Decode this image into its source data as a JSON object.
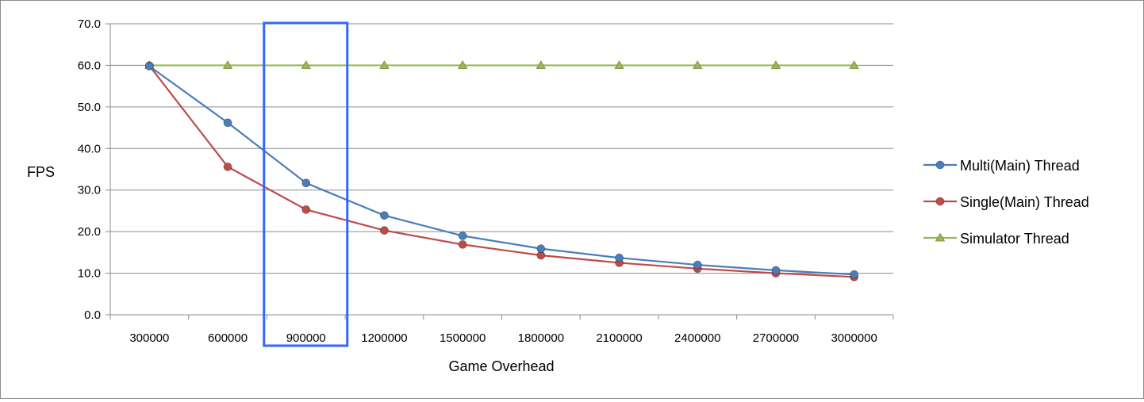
{
  "chart_data": {
    "type": "line",
    "title": "",
    "xlabel": "Game Overhead",
    "ylabel": "FPS",
    "categories": [
      "300000",
      "600000",
      "900000",
      "1200000",
      "1500000",
      "1800000",
      "2100000",
      "2400000",
      "2700000",
      "3000000"
    ],
    "yticks": [
      "0.0",
      "10.0",
      "20.0",
      "30.0",
      "40.0",
      "50.0",
      "60.0",
      "70.0"
    ],
    "ylim": [
      0,
      70
    ],
    "grid": true,
    "legend_position": "right",
    "series": [
      {
        "name": "Multi(Main) Thread",
        "color": "#4a7ebb",
        "marker": "circle",
        "values": [
          59.8,
          46.2,
          31.7,
          23.9,
          19.0,
          15.9,
          13.7,
          12.0,
          10.7,
          9.7
        ]
      },
      {
        "name": "Single(Main) Thread",
        "color": "#be4b48",
        "marker": "circle",
        "values": [
          59.9,
          35.6,
          25.3,
          20.3,
          16.9,
          14.3,
          12.5,
          11.1,
          10.0,
          9.1
        ]
      },
      {
        "name": "Simulator Thread",
        "color": "#98b954",
        "marker": "triangle",
        "values": [
          60.0,
          60.0,
          60.0,
          60.0,
          60.0,
          60.0,
          60.0,
          60.0,
          60.0,
          60.0
        ]
      }
    ],
    "highlight": {
      "category": "900000",
      "color": "#3366ff"
    }
  }
}
